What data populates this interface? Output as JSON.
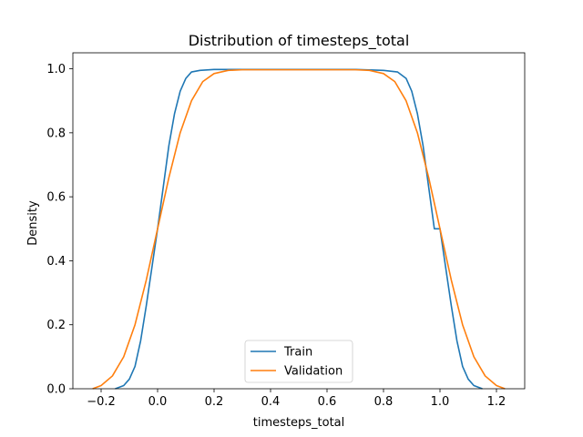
{
  "chart_data": {
    "type": "line",
    "title": "Distribution of timesteps_total",
    "xlabel": "timesteps_total",
    "ylabel": "Density",
    "xlim": [
      -0.3,
      1.3
    ],
    "ylim": [
      0.0,
      1.05
    ],
    "xticks": [
      -0.2,
      0.0,
      0.2,
      0.4,
      0.6,
      0.8,
      1.0,
      1.2
    ],
    "xtick_labels": [
      "−0.2",
      "0.0",
      "0.2",
      "0.4",
      "0.6",
      "0.8",
      "1.0",
      "1.2"
    ],
    "yticks": [
      0.0,
      0.2,
      0.4,
      0.6,
      0.8,
      1.0
    ],
    "ytick_labels": [
      "0.0",
      "0.2",
      "0.4",
      "0.6",
      "0.8",
      "1.0"
    ],
    "grid": false,
    "legend_position": "lower center",
    "series": [
      {
        "name": "Train",
        "color": "#1f77b4",
        "x": [
          -0.15,
          -0.12,
          -0.1,
          -0.08,
          -0.06,
          -0.04,
          -0.02,
          0.0,
          0.02,
          0.04,
          0.06,
          0.08,
          0.1,
          0.12,
          0.15,
          0.2,
          0.3,
          0.5,
          0.7,
          0.8,
          0.85,
          0.88,
          0.9,
          0.92,
          0.94,
          0.96,
          0.98,
          1.0,
          1.02,
          1.04,
          1.06,
          1.08,
          1.1,
          1.12,
          1.15
        ],
        "y": [
          0.0,
          0.01,
          0.03,
          0.07,
          0.15,
          0.26,
          0.38,
          0.5,
          0.63,
          0.76,
          0.86,
          0.93,
          0.97,
          0.99,
          0.995,
          0.998,
          0.998,
          0.998,
          0.998,
          0.995,
          0.99,
          0.97,
          0.93,
          0.86,
          0.76,
          0.63,
          0.5,
          0.5,
          0.38,
          0.26,
          0.15,
          0.07,
          0.03,
          0.01,
          0.0
        ]
      },
      {
        "name": "Validation",
        "color": "#ff7f0e",
        "x": [
          -0.23,
          -0.2,
          -0.16,
          -0.12,
          -0.08,
          -0.04,
          0.0,
          0.04,
          0.08,
          0.12,
          0.16,
          0.2,
          0.25,
          0.3,
          0.5,
          0.7,
          0.75,
          0.8,
          0.84,
          0.88,
          0.92,
          0.96,
          1.0,
          1.04,
          1.08,
          1.12,
          1.16,
          1.2,
          1.23
        ],
        "y": [
          0.0,
          0.01,
          0.04,
          0.1,
          0.2,
          0.34,
          0.5,
          0.66,
          0.8,
          0.9,
          0.96,
          0.985,
          0.995,
          0.997,
          0.997,
          0.997,
          0.995,
          0.985,
          0.96,
          0.9,
          0.8,
          0.66,
          0.5,
          0.34,
          0.2,
          0.1,
          0.04,
          0.01,
          0.0
        ]
      }
    ]
  }
}
